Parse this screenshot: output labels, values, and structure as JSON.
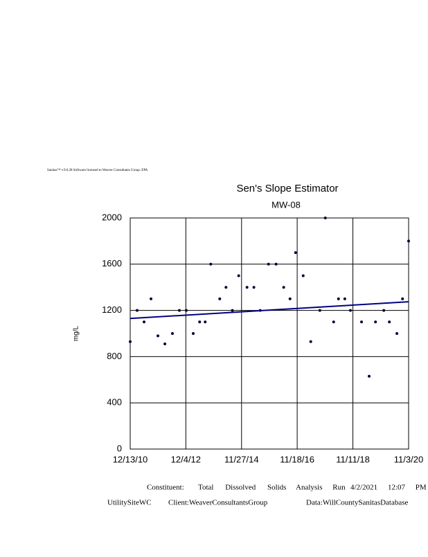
{
  "header": "Sanitas™ v.9.6.28 Software licensed to Weaver Consultants Group. EPA",
  "chart_data": {
    "type": "scatter",
    "title": "Sen's Slope Estimator",
    "subtitle": "MW-08",
    "y_label": "mg/L",
    "xlim": [
      "12/13/10",
      "11/3/20"
    ],
    "xticks": [
      "12/13/10",
      "12/4/12",
      "11/27/14",
      "11/18/16",
      "11/11/18",
      "11/3/20"
    ],
    "ylim": [
      0,
      2000
    ],
    "yticks": [
      0,
      400,
      800,
      1200,
      1600,
      2000
    ],
    "grid": true,
    "series": [
      {
        "color": "#000033",
        "mode": "markers",
        "x": [
          "12/13/10",
          "3/13/11",
          "6/11/11",
          "9/9/11",
          "12/8/11",
          "3/7/12",
          "6/13/12",
          "9/11/12",
          "12/10/12",
          "3/10/13",
          "6/1/13",
          "8/12/13",
          "10/23/13",
          "2/17/14",
          "5/9/14",
          "7/31/14",
          "10/21/14",
          "2/6/15",
          "5/6/15",
          "7/27/15",
          "11/12/15",
          "2/18/16",
          "5/27/16",
          "8/17/16",
          "10/28/16",
          "2/4/17",
          "5/13/17",
          "9/8/17",
          "11/18/17",
          "3/6/18",
          "5/8/18",
          "7/29/18",
          "10/10/18",
          "3/3/19",
          "6/10/19",
          "8/31/19",
          "12/17/19",
          "2/27/20",
          "6/4/20",
          "8/16/20",
          "11/3/20"
        ],
        "values": [
          930,
          1200,
          1100,
          1300,
          980,
          910,
          1000,
          1200,
          1200,
          1000,
          1100,
          1100,
          1600,
          1300,
          1400,
          1200,
          1500,
          1400,
          1400,
          1200,
          1600,
          1600,
          1400,
          1300,
          1700,
          1500,
          930,
          1200,
          2000,
          1100,
          1300,
          1300,
          1200,
          1100,
          630,
          1100,
          1200,
          1100,
          1000,
          1300,
          1800
        ]
      },
      {
        "color": "#000080",
        "mode": "line",
        "x": [
          "12/13/10",
          "11/3/20"
        ],
        "values": [
          1130,
          1275
        ]
      }
    ]
  },
  "footer": {
    "constituent": "Constituent:",
    "name": "Total Dissolved Solids",
    "run": "Analysis Run",
    "date": "4/2/2021",
    "time": "12:07 PM",
    "site": "UtilitySiteWC",
    "client": "Client:WeaverConsultantsGroup",
    "database": "Data:WillCountySanitasDatabase"
  }
}
